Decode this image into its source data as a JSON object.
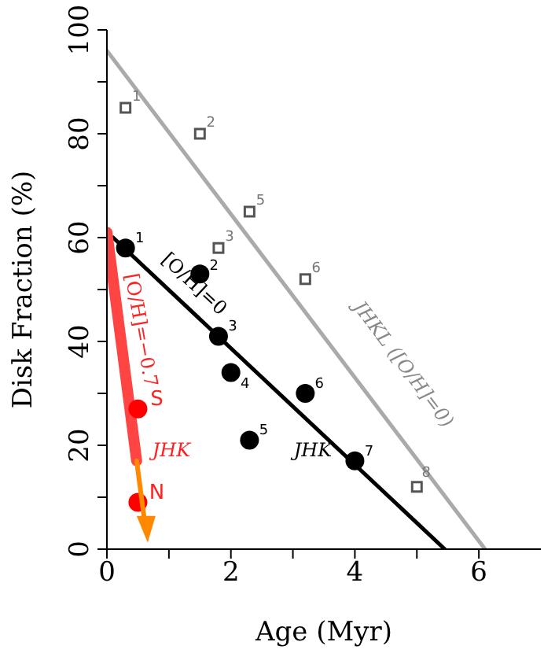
{
  "chart_data": {
    "type": "scatter",
    "xlabel": "Age (Myr)",
    "ylabel": "Disk Fraction (%)",
    "xlim": [
      0,
      7
    ],
    "xticks": [
      0,
      {
        "value": 1,
        "label": null
      },
      2,
      {
        "value": 3,
        "label": null
      },
      4,
      {
        "value": 5,
        "label": null
      },
      6
    ],
    "ylim": [
      0,
      100
    ],
    "yticks": [
      0,
      {
        "value": 10,
        "label": null
      },
      20,
      {
        "value": 30,
        "label": null
      },
      40,
      {
        "value": 50,
        "label": null
      },
      60,
      {
        "value": 70,
        "label": null
      },
      80,
      {
        "value": 90,
        "label": null
      },
      100
    ],
    "series": [
      {
        "type": "line",
        "color": "#aaaaaa",
        "x": [
          0,
          6.1
        ],
        "values": [
          96,
          0
        ]
      },
      {
        "type": "scatter",
        "color": "#555555",
        "marker": "square",
        "x": [
          0.3,
          1.5,
          1.8,
          2.3,
          3.2,
          5.0
        ],
        "values": [
          85,
          80,
          58,
          65,
          52,
          12
        ]
      },
      {
        "type": "line",
        "color": "#000000",
        "x": [
          0.1,
          5.45
        ],
        "values": [
          60,
          0
        ]
      },
      {
        "type": "scatter",
        "color": "#000000",
        "marker": "circle",
        "x": [
          0.3,
          1.5,
          1.8,
          2.0,
          2.3,
          3.2,
          4.0
        ],
        "values": [
          58,
          53,
          41,
          34,
          21,
          30,
          17
        ]
      },
      {
        "type": "line",
        "color": "#ff4444",
        "x": [
          0,
          0.48
        ],
        "values": [
          61,
          17
        ]
      },
      {
        "type": "scatter",
        "color": "#ff0000",
        "marker": "circle",
        "x": [
          0.5,
          0.5
        ],
        "values": [
          27,
          9
        ]
      }
    ],
    "annotations": [
      "[O/H]=0",
      "JHK",
      "JHKL ([O/H]=0)",
      "[O/H]=−0.7",
      "JHK",
      {
        "text": "1",
        "x": 0.3,
        "y": 85
      },
      {
        "text": "2",
        "x": 1.5,
        "y": 80
      },
      {
        "text": "3",
        "x": 1.8,
        "y": 58
      },
      {
        "text": "5",
        "x": 2.3,
        "y": 65
      },
      {
        "text": "6",
        "x": 3.2,
        "y": 52
      },
      {
        "text": "8",
        "x": 5.0,
        "y": 12
      },
      {
        "text": "1",
        "x": 0.3,
        "y": 58
      },
      {
        "text": "2",
        "x": 1.5,
        "y": 53
      },
      {
        "text": "3",
        "x": 1.8,
        "y": 41
      },
      {
        "text": "4",
        "x": 2.0,
        "y": 34
      },
      {
        "text": "5",
        "x": 2.3,
        "y": 21
      },
      {
        "text": "6",
        "x": 3.2,
        "y": 30
      },
      {
        "text": "7",
        "x": 4.0,
        "y": 17
      },
      {
        "text": "S",
        "x": 0.5,
        "y": 27
      },
      {
        "text": "N",
        "x": 0.5,
        "y": 9
      }
    ]
  }
}
